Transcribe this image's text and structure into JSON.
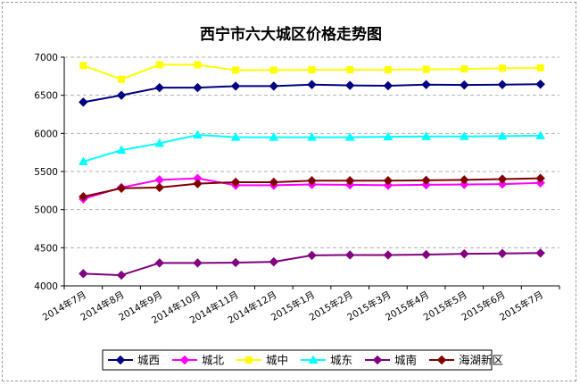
{
  "chart_data": {
    "type": "line",
    "title": "西宁市六大城区价格走势图",
    "xlabel": "",
    "ylabel": "",
    "ylim": [
      4000,
      7000
    ],
    "yticks": [
      4000,
      4500,
      5000,
      5500,
      6000,
      6500,
      7000
    ],
    "grid": "horizontal",
    "legend_position": "bottom",
    "categories": [
      "2014年7月",
      "2014年8月",
      "2014年9月",
      "2014年10月",
      "2014年11月",
      "2014年12月",
      "2015年1月",
      "2015年2月",
      "2015年3月",
      "2015年4月",
      "2015年5月",
      "2015年6月",
      "2015年7月"
    ],
    "series": [
      {
        "name": "城西",
        "color": "#000080",
        "marker": "diamond",
        "values": [
          6410,
          6500,
          6600,
          6600,
          6620,
          6620,
          6640,
          6630,
          6625,
          6640,
          6635,
          6640,
          6645
        ]
      },
      {
        "name": "城北",
        "color": "#ff00ff",
        "marker": "diamond",
        "values": [
          5140,
          5290,
          5390,
          5410,
          5320,
          5320,
          5330,
          5325,
          5320,
          5325,
          5330,
          5335,
          5350
        ]
      },
      {
        "name": "城中",
        "color": "#ffff00",
        "marker": "square",
        "values": [
          6890,
          6710,
          6900,
          6900,
          6830,
          6830,
          6835,
          6835,
          6835,
          6840,
          6845,
          6855,
          6860
        ]
      },
      {
        "name": "城东",
        "color": "#00ffff",
        "marker": "triangle",
        "values": [
          5630,
          5780,
          5870,
          5980,
          5950,
          5950,
          5950,
          5950,
          5955,
          5960,
          5960,
          5965,
          5970
        ]
      },
      {
        "name": "城南",
        "color": "#800080",
        "marker": "diamond",
        "values": [
          4160,
          4140,
          4300,
          4300,
          4305,
          4315,
          4400,
          4405,
          4405,
          4410,
          4420,
          4425,
          4430
        ]
      },
      {
        "name": "海湖新区",
        "color": "#800000",
        "marker": "diamond",
        "values": [
          5170,
          5280,
          5290,
          5340,
          5360,
          5360,
          5380,
          5380,
          5380,
          5385,
          5390,
          5400,
          5410
        ]
      }
    ]
  }
}
